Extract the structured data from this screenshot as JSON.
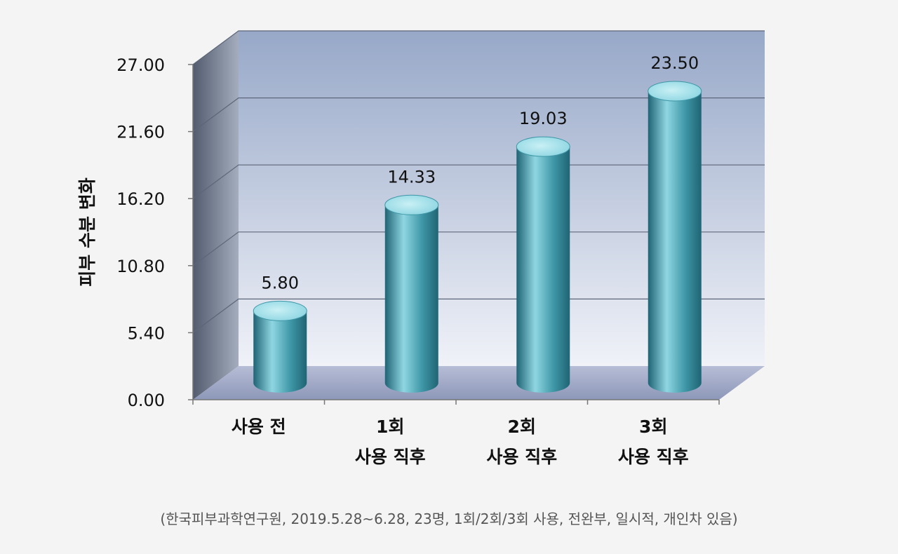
{
  "chart_data": {
    "type": "bar",
    "title": "",
    "ylabel": "피부 수분 변화",
    "xlabel": "",
    "categories": [
      [
        "사용 전"
      ],
      [
        "1회",
        "사용 직후"
      ],
      [
        "2회",
        "사용 직후"
      ],
      [
        "3회",
        "사용 직후"
      ]
    ],
    "values": [
      5.8,
      14.33,
      19.03,
      23.5
    ],
    "value_labels": [
      "5.80",
      "14.33",
      "19.03",
      "23.50"
    ],
    "yticks": [
      "0.00",
      "5.40",
      "10.80",
      "16.20",
      "21.60",
      "27.00"
    ],
    "ytick_values": [
      0,
      5.4,
      10.8,
      16.2,
      21.6,
      27
    ],
    "ylim": [
      0,
      27
    ],
    "grid": true,
    "style": "3d-cylinder",
    "colors": {
      "bar": "#3e96a6",
      "bar_light": "#8fd6e2",
      "bar_dark": "#1f6474",
      "wall_top": "#97a8c8",
      "wall_bottom": "#f0f2f8",
      "side_wall": "#6f7a8e",
      "floor": "#8d97b8"
    }
  },
  "footnote": "(한국피부과학연구원, 2019.5.28~6.28, 23명, 1회/2회/3회 사용, 전완부, 일시적, 개인차 있음)"
}
